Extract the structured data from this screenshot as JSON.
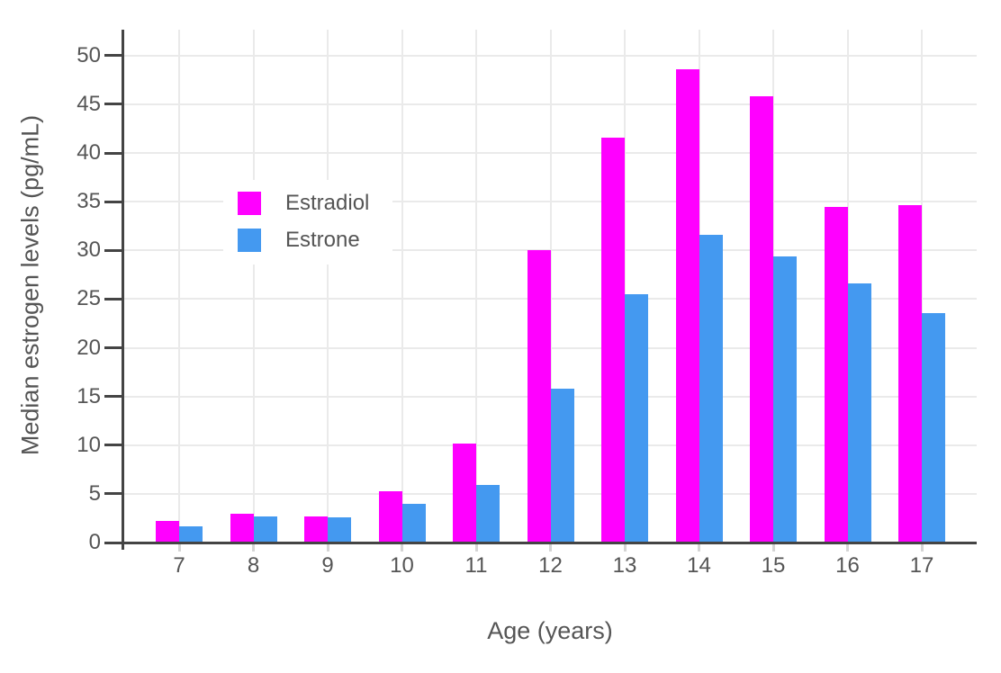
{
  "chart_data": {
    "type": "bar",
    "title": "",
    "xlabel": "Age (years)",
    "ylabel": "Median estrogen levels (pg/mL)",
    "categories": [
      "7",
      "8",
      "9",
      "10",
      "11",
      "12",
      "13",
      "14",
      "15",
      "16",
      "17"
    ],
    "series": [
      {
        "name": "Estradiol",
        "color": "#FF00FF",
        "values": [
          2.2,
          3.0,
          2.7,
          5.3,
          10.2,
          30.0,
          41.6,
          48.6,
          45.8,
          34.5,
          34.6
        ]
      },
      {
        "name": "Estrone",
        "color": "#4499F0",
        "values": [
          1.7,
          2.7,
          2.6,
          4.0,
          5.9,
          15.8,
          25.5,
          31.6,
          29.4,
          26.6,
          23.6
        ]
      }
    ],
    "ylim": [
      0,
      50
    ],
    "yticks": [
      0,
      5,
      10,
      15,
      20,
      25,
      30,
      35,
      40,
      45,
      50
    ],
    "grid": true,
    "legend_position": "inside-top-left"
  },
  "style": {
    "background": "#FFFFFF",
    "axis_color": "#444444",
    "grid_color": "#EAEAEA",
    "x_tick_color": "#D5D5D5",
    "text_color": "#555555"
  }
}
